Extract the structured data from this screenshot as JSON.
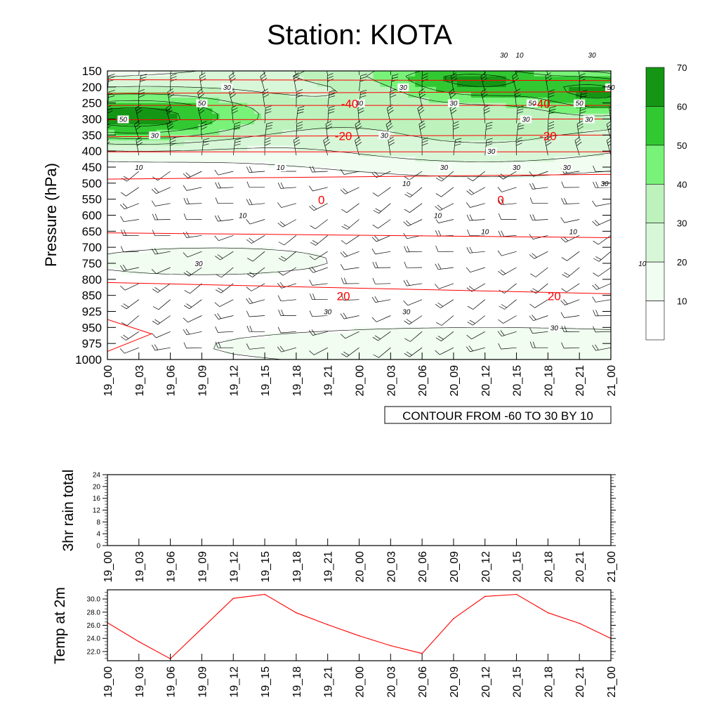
{
  "title": "Station: KIOTA",
  "colors": {
    "fill": [
      "#ffffff",
      "#f0fdf0",
      "#d8f7d8",
      "#bdf2bd",
      "#79f279",
      "#32c832",
      "#149614"
    ],
    "temp_contour": "#ff0000",
    "speed_contour": "#000000",
    "temp_line": "#ff0000"
  },
  "chart_data": [
    {
      "type": "heatmap",
      "name": "time-pressure cross section",
      "ylabel": "Pressure (hPa)",
      "y_ticks": [
        "150",
        "200",
        "250",
        "300",
        "350",
        "400",
        "450",
        "500",
        "550",
        "600",
        "650",
        "700",
        "750",
        "800",
        "850",
        "925",
        "950",
        "975",
        "1000"
      ],
      "x_ticks": [
        "19_00",
        "19_03",
        "19_06",
        "19_09",
        "19_12",
        "19_15",
        "19_18",
        "19_21",
        "20_00",
        "20_03",
        "20_06",
        "20_09",
        "20_12",
        "20_15",
        "20_18",
        "20_21",
        "21_00"
      ],
      "contour_info": "CONTOUR FROM -60 TO 30 BY 10",
      "colorbar_levels": [
        "10",
        "20",
        "30",
        "40",
        "50",
        "60",
        "70"
      ],
      "wind_speed_labels": [
        {
          "t": 0.5,
          "p": "300",
          "text": "50"
        },
        {
          "t": 1.5,
          "p": "350",
          "text": "30"
        },
        {
          "t": 1.0,
          "p": "450",
          "text": "10"
        },
        {
          "t": 3.0,
          "p": "250",
          "text": "50"
        },
        {
          "t": 3.8,
          "p": "200",
          "text": "30"
        },
        {
          "t": 5.5,
          "p": "450",
          "text": "10"
        },
        {
          "t": 8.0,
          "p": "250",
          "text": "30"
        },
        {
          "t": 8.8,
          "p": "350",
          "text": "30"
        },
        {
          "t": 4.3,
          "p": "600",
          "text": "10"
        },
        {
          "t": 2.9,
          "p": "750",
          "text": "30"
        },
        {
          "t": 9.5,
          "p": "500",
          "text": "10"
        },
        {
          "t": 11.0,
          "p": "250",
          "text": "30"
        },
        {
          "t": 10.7,
          "p": "450",
          "text": "30"
        },
        {
          "t": 10.5,
          "p": "600",
          "text": "10"
        },
        {
          "t": 9.5,
          "p": "925",
          "text": "30"
        },
        {
          "t": 7.0,
          "p": "925",
          "text": "30"
        },
        {
          "t": 13.3,
          "p": "300",
          "text": "30"
        },
        {
          "t": 12.2,
          "p": "400",
          "text": "30"
        },
        {
          "t": 13.0,
          "p": "450",
          "text": "30"
        },
        {
          "t": 13.5,
          "p": "250",
          "text": "50"
        },
        {
          "t": 12.6,
          "p": "530",
          "text": "30"
        },
        {
          "t": 13.1,
          "p": "630",
          "text": "10"
        },
        {
          "t": 14.2,
          "p": "950",
          "text": "30"
        },
        {
          "t": 15.0,
          "p": "250",
          "text": "50"
        },
        {
          "t": 15.3,
          "p": "300",
          "text": "30"
        },
        {
          "t": 16.0,
          "p": "200",
          "text": "50"
        },
        {
          "t": 14.6,
          "p": "450",
          "text": "30"
        },
        {
          "t": 15.8,
          "p": "500",
          "text": "30"
        },
        {
          "t": 14.8,
          "p": "650",
          "text": "10"
        },
        {
          "t": 17.0,
          "p": "750",
          "text": "10"
        },
        {
          "t": 15.4,
          "p": "910",
          "text": "30"
        },
        {
          "t": 9.4,
          "p": "200",
          "text": "30"
        },
        {
          "t": 12.0,
          "p": "650",
          "text": "10"
        }
      ],
      "temperature_labels": [
        {
          "t": 7.7,
          "p": "250",
          "text": "-40"
        },
        {
          "t": 13.8,
          "p": "250",
          "text": "-40"
        },
        {
          "t": 7.5,
          "p": "350",
          "text": "-20"
        },
        {
          "t": 14.0,
          "p": "350",
          "text": "-20"
        },
        {
          "t": 6.8,
          "p": "550",
          "text": "0"
        },
        {
          "t": 12.5,
          "p": "550",
          "text": "0"
        },
        {
          "t": 7.5,
          "p": "850",
          "text": "20"
        },
        {
          "t": 14.2,
          "p": "850",
          "text": "20"
        }
      ]
    },
    {
      "type": "bar",
      "name": "rain",
      "ylabel": "3hr rain total",
      "categories": [
        "19_00",
        "19_03",
        "19_06",
        "19_09",
        "19_12",
        "19_15",
        "19_18",
        "19_21",
        "20_00",
        "20_03",
        "20_06",
        "20_09",
        "20_12",
        "20_15",
        "20_18",
        "20_21",
        "21_00"
      ],
      "values": [
        0,
        0,
        0,
        0,
        0,
        0,
        0,
        0,
        0,
        0,
        0,
        0,
        0,
        0,
        0,
        0,
        0
      ],
      "y_ticks": [
        "0",
        "4",
        "8",
        "12",
        "16",
        "20",
        "24"
      ],
      "ylim": [
        0,
        24
      ]
    },
    {
      "type": "line",
      "name": "temperature",
      "ylabel": "Temp at 2m",
      "categories": [
        "19_00",
        "19_03",
        "19_06",
        "19_09",
        "19_12",
        "19_15",
        "19_18",
        "19_21",
        "20_00",
        "20_03",
        "20_06",
        "20_09",
        "20_12",
        "20_15",
        "20_18",
        "20_21",
        "21_00"
      ],
      "values": [
        26.4,
        23.5,
        20.9,
        25.5,
        30.1,
        30.7,
        27.9,
        26.1,
        24.4,
        22.9,
        21.7,
        27.0,
        30.4,
        30.7,
        27.9,
        26.3,
        24.0
      ],
      "y_ticks": [
        "22.0",
        "24.0",
        "26.0",
        "28.0",
        "30.0"
      ],
      "ylim": [
        20.6,
        31.4
      ]
    }
  ]
}
